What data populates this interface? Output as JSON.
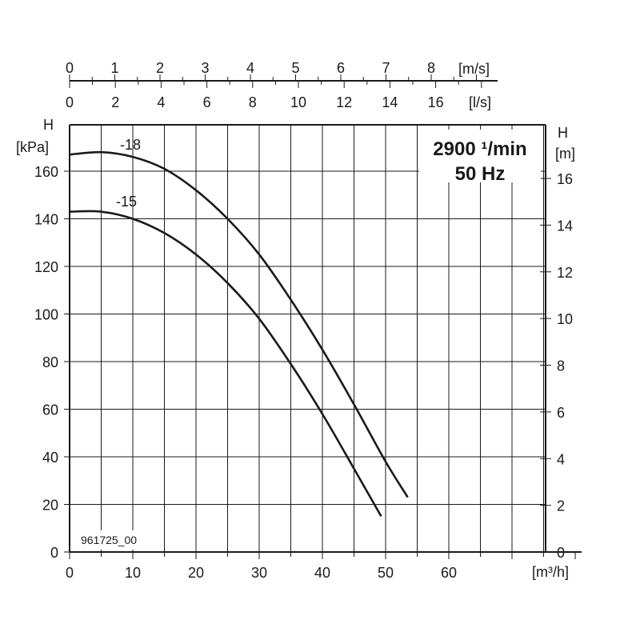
{
  "chart_data": {
    "type": "line",
    "speed_label": "2900 ¹/min",
    "frequency_label": "50 Hz",
    "drawing_code": "961725_00",
    "x_axis": {
      "unit": "[m³/h]",
      "range": [
        0,
        75
      ],
      "tick_values": [
        0,
        10,
        20,
        30,
        40,
        50,
        60
      ],
      "tick_labels": [
        "0",
        "10",
        "20",
        "30",
        "40",
        "50",
        "60"
      ]
    },
    "y_left": {
      "title": "H",
      "unit": "[kPa]",
      "range": [
        0,
        180
      ],
      "tick_values": [
        0,
        20,
        40,
        60,
        80,
        100,
        120,
        140,
        160
      ],
      "tick_labels": [
        "0",
        "20",
        "40",
        "60",
        "80",
        "100",
        "120",
        "140",
        "160"
      ]
    },
    "y_right": {
      "title": "H",
      "unit": "[m]",
      "tick_values": [
        0,
        2,
        4,
        6,
        8,
        10,
        12,
        14,
        16
      ],
      "tick_labels": [
        "0",
        "2",
        "4",
        "6",
        "8",
        "10",
        "12",
        "14",
        "16"
      ]
    },
    "top_axis_velocity": {
      "unit": "[m/s]",
      "tick_values": [
        0,
        1,
        2,
        3,
        4,
        5,
        6,
        7,
        8
      ],
      "tick_labels": [
        "0",
        "1",
        "2",
        "3",
        "4",
        "5",
        "6",
        "7",
        "8"
      ]
    },
    "top_axis_flow": {
      "unit": "[l/s]",
      "tick_values": [
        0,
        2,
        4,
        6,
        8,
        10,
        12,
        14,
        16
      ],
      "tick_labels": [
        "0",
        "2",
        "4",
        "6",
        "8",
        "10",
        "12",
        "14",
        "16"
      ]
    },
    "series": [
      {
        "name": "-18",
        "x": [
          0,
          5,
          10,
          15,
          20,
          25,
          30,
          35,
          40,
          45,
          50,
          53.5
        ],
        "y": [
          167,
          168,
          166,
          161,
          152,
          140,
          125,
          106,
          85,
          62,
          38,
          23
        ]
      },
      {
        "name": "-15",
        "x": [
          0,
          5,
          10,
          15,
          20,
          25,
          30,
          35,
          40,
          45,
          49.3
        ],
        "y": [
          143,
          143,
          140,
          134,
          125,
          113,
          98,
          79,
          58,
          35,
          15
        ]
      }
    ],
    "grid": true
  }
}
